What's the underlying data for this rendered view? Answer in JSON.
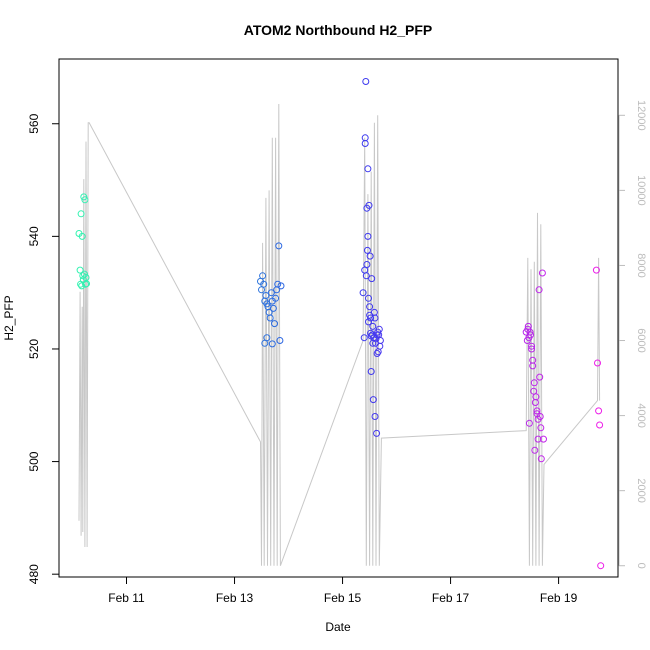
{
  "chart_data": {
    "type": "scatter",
    "title": "ATOM2 Northbound H2_PFP",
    "xlabel": "Date",
    "ylabel": "H2_PFP",
    "x_tick_labels": [
      "Feb 11",
      "Feb 13",
      "Feb 15",
      "Feb 17",
      "Feb 19"
    ],
    "x_ticks": [
      11,
      13,
      15,
      17,
      19
    ],
    "xlim": [
      9.75,
      20.1
    ],
    "ylim": [
      479.5,
      571.5
    ],
    "y_ticks": [
      480,
      500,
      520,
      540,
      560
    ],
    "y2lim": [
      -300,
      13500
    ],
    "y2_ticks": [
      0,
      2000,
      4000,
      6000,
      8000,
      10000,
      12000
    ],
    "grid": false,
    "legend": "none",
    "colors": {
      "altitude_line": "#c8c8c8",
      "points_gradient_start": "#33f5b0",
      "points_gradient_mid": "#2a3df0",
      "points_gradient_end": "#ee1ee8",
      "right_axis": "#bdbdbd"
    },
    "altitude_profile": {
      "x": [
        10.12,
        10.14,
        10.16,
        10.18,
        10.19,
        10.21,
        10.23,
        10.25,
        10.27,
        10.29,
        10.31,
        13.48,
        13.5,
        13.52,
        13.55,
        13.58,
        13.61,
        13.64,
        13.67,
        13.7,
        13.73,
        13.76,
        13.79,
        13.82,
        13.85,
        15.38,
        15.41,
        15.44,
        15.47,
        15.5,
        15.53,
        15.56,
        15.59,
        15.62,
        15.65,
        15.68,
        15.72,
        18.4,
        18.43,
        18.46,
        18.49,
        18.52,
        18.55,
        18.58,
        18.61,
        18.64,
        18.67,
        18.7,
        18.73,
        19.72,
        19.74,
        19.76
      ],
      "y": [
        1200,
        7300,
        800,
        6900,
        900,
        10300,
        500,
        11300,
        500,
        11800,
        11800,
        3300,
        0,
        8600,
        0,
        9800,
        0,
        10000,
        0,
        11400,
        0,
        11400,
        0,
        12300,
        0,
        6000,
        11400,
        0,
        9900,
        0,
        10500,
        0,
        11800,
        0,
        12000,
        0,
        3400,
        3600,
        8200,
        0,
        7900,
        0,
        8100,
        0,
        9400,
        0,
        9100,
        0,
        2700,
        4400,
        8200,
        4400
      ]
    },
    "series": [
      {
        "x": [
          10.12,
          10.14,
          10.15,
          10.16,
          10.17,
          10.18,
          10.19,
          10.2,
          10.21,
          10.22,
          10.23,
          10.24,
          10.25,
          10.26
        ],
        "y": [
          540.5,
          534,
          531.5,
          544,
          531.2,
          540,
          533,
          532.3,
          547,
          533.3,
          546.5,
          531.5,
          532.7,
          531.6
        ]
      },
      {
        "x": [
          13.48,
          13.5,
          13.52,
          13.54,
          13.56,
          13.58,
          13.6,
          13.62,
          13.64,
          13.66,
          13.68,
          13.7,
          13.72,
          13.74,
          13.76,
          13.78,
          13.8,
          13.82,
          13.84,
          13.86,
          13.56,
          13.6,
          13.7
        ],
        "y": [
          532,
          530.5,
          533,
          531.5,
          528.5,
          529.5,
          528,
          527.5,
          526.5,
          525.5,
          530,
          528.5,
          527.2,
          524.5,
          529,
          530.5,
          531.5,
          538.3,
          521.5,
          531.2,
          521,
          522,
          520.9
        ]
      },
      {
        "x": [
          15.38,
          15.4,
          15.41,
          15.42,
          15.43,
          15.44,
          15.45,
          15.46,
          15.47,
          15.48,
          15.49,
          15.5,
          15.51,
          15.52,
          15.53,
          15.54,
          15.55,
          15.56,
          15.57,
          15.58,
          15.59,
          15.6,
          15.61,
          15.62,
          15.63,
          15.64,
          15.65,
          15.66,
          15.67,
          15.68,
          15.69,
          15.7,
          15.42,
          15.45,
          15.48,
          15.52,
          15.56,
          15.6,
          15.64,
          15.47,
          15.5,
          15.53,
          15.58
        ],
        "y": [
          530,
          522,
          534,
          557.5,
          567.5,
          533,
          545,
          537.5,
          552,
          529,
          545.5,
          527.5,
          536.5,
          525.5,
          516,
          532.5,
          522.5,
          521,
          511,
          522,
          526.5,
          508,
          521,
          521.8,
          505,
          519.2,
          523,
          519.5,
          522.5,
          523.5,
          520.5,
          521.5,
          556.5,
          535,
          524.8,
          522.8,
          524,
          525.5,
          522.5,
          540,
          526,
          522.3,
          522
        ]
      },
      {
        "x": [
          18.4,
          18.42,
          18.44,
          18.46,
          18.48,
          18.5,
          18.52,
          18.54,
          18.56,
          18.58,
          18.6,
          18.62,
          18.64,
          18.66,
          18.68,
          18.7,
          18.72,
          18.45,
          18.5,
          18.55,
          18.6,
          18.65,
          18.43,
          18.47,
          18.52,
          18.57,
          18.62,
          18.67
        ],
        "y": [
          523,
          521.5,
          524,
          506.8,
          522.5,
          520,
          517,
          512.5,
          502,
          511.5,
          509,
          504,
          530.5,
          508,
          500.5,
          533.5,
          504,
          522,
          520.5,
          514,
          508.5,
          515,
          523.5,
          523,
          518,
          510.5,
          507.5,
          506
        ]
      },
      {
        "x": [
          19.7,
          19.72,
          19.74,
          19.76,
          19.78
        ],
        "y": [
          534,
          517.5,
          509,
          506.5,
          481.5
        ]
      }
    ]
  }
}
